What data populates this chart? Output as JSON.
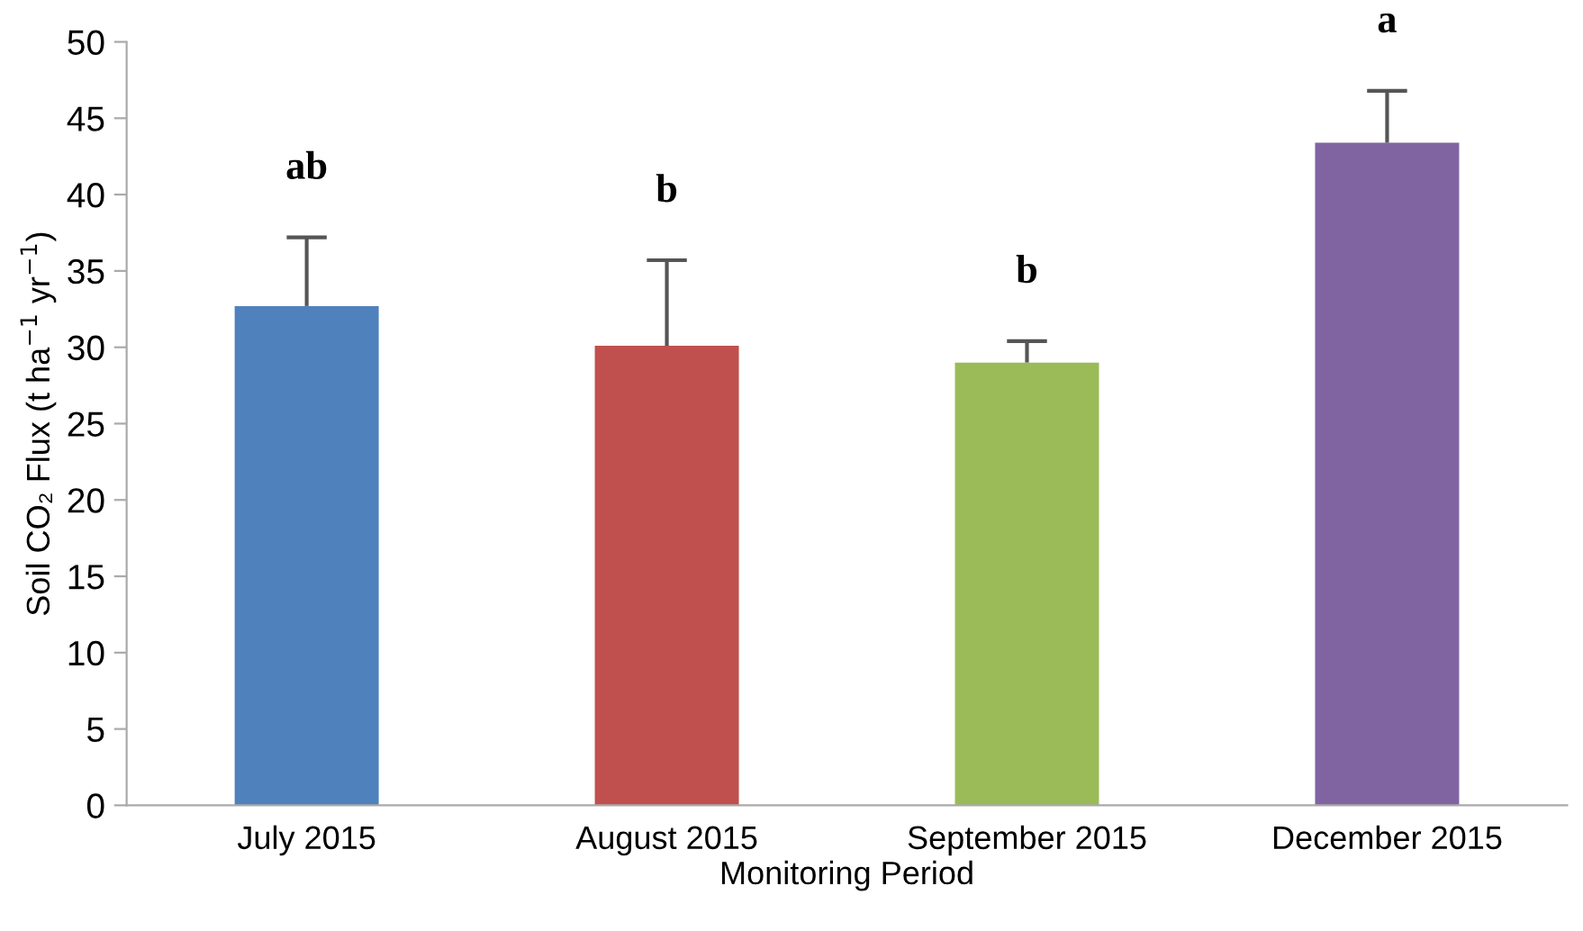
{
  "chart_data": {
    "type": "bar",
    "xlabel": "Monitoring Period",
    "ylabel": "Soil CO₂ Flux (t ha$^{−1}$ yr$^{−1}$)",
    "categories": [
      "July 2015",
      "August 2015",
      "September 2015",
      "December 2015"
    ],
    "values": [
      32.7,
      30.1,
      29.0,
      43.4
    ],
    "colors": [
      "#4f81bd",
      "#c0504d",
      "#9bbb59",
      "#8064a2"
    ],
    "errors": [
      [
        32.7,
        37.2
      ],
      [
        30.1,
        35.7
      ],
      [
        29.0,
        30.4
      ],
      [
        43.4,
        46.8
      ]
    ],
    "ylim": [
      0,
      50
    ],
    "yticks": [
      0,
      5,
      10,
      15,
      20,
      25,
      30,
      35,
      40,
      45,
      50
    ],
    "grid": false,
    "legend": false,
    "annotations": [
      "ab",
      "b",
      "b",
      "a"
    ]
  }
}
